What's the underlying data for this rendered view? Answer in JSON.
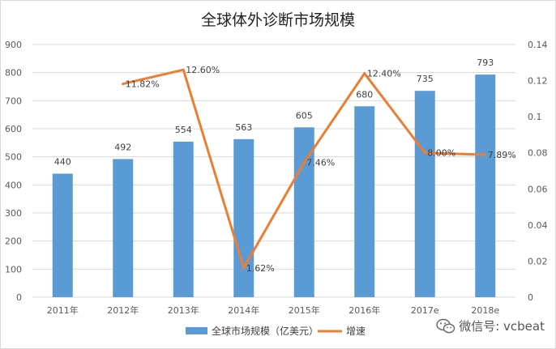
{
  "chart_data": {
    "type": "bar+line",
    "title": "全球体外诊断市场规模",
    "categories": [
      "2011年",
      "2012年",
      "2013年",
      "2014年",
      "2015年",
      "2016年",
      "2017e",
      "2018e"
    ],
    "series": [
      {
        "name": "全球市场规模（亿美元）",
        "type": "bar",
        "axis": "left",
        "color": "#5b9bd5",
        "values": [
          440,
          492,
          554,
          563,
          605,
          680,
          735,
          793
        ],
        "labels": [
          "440",
          "492",
          "554",
          "563",
          "605",
          "680",
          "735",
          "793"
        ]
      },
      {
        "name": "增速",
        "type": "line",
        "axis": "right",
        "color": "#ed7d31",
        "values": [
          null,
          0.1182,
          0.126,
          0.0162,
          0.0746,
          0.124,
          0.08,
          0.0789
        ],
        "labels": [
          "",
          "11.82%",
          "12.60%",
          "1.62%",
          "7.46%",
          "12.40%",
          "8.00%",
          "7.89%"
        ]
      }
    ],
    "y_left": {
      "min": 0,
      "max": 900,
      "ticks": [
        "0",
        "100",
        "200",
        "300",
        "400",
        "500",
        "600",
        "700",
        "800",
        "900"
      ]
    },
    "y_right": {
      "min": 0,
      "max": 0.14,
      "ticks": [
        "0",
        "0.02",
        "0.04",
        "0.06",
        "0.08",
        "0.1",
        "0.12",
        "0.14"
      ]
    },
    "grid": true,
    "legend": "bottom"
  },
  "watermark": {
    "text": "微信号: vcbeat",
    "icon": "wechat-icon"
  }
}
